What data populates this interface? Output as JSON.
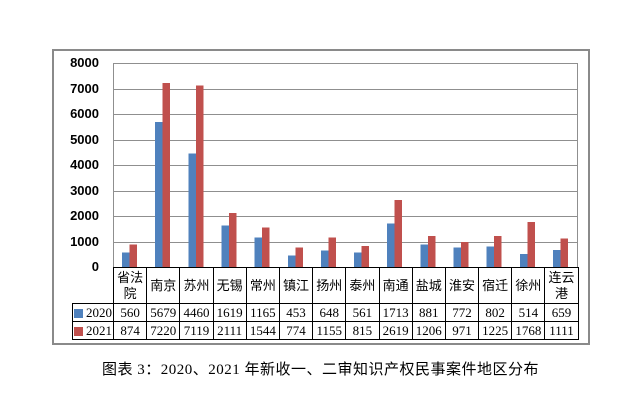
{
  "caption": "图表 3：2020、2021 年新收一、二审知识产权民事案件地区分布",
  "colors": {
    "grid": "#8f8f8f",
    "plot_border": "#8f8f8f",
    "frame_border": "#8a8a8a",
    "table_border": "#000000",
    "series_2020": "#4F81BD",
    "series_2021": "#C0504D"
  },
  "chart_data": {
    "type": "bar",
    "title": "",
    "xlabel": "",
    "ylabel": "",
    "categories": [
      "省法院",
      "南京",
      "苏州",
      "无锡",
      "常州",
      "镇江",
      "扬州",
      "泰州",
      "南通",
      "盐城",
      "淮安",
      "宿迁",
      "徐州",
      "连云港"
    ],
    "series": [
      {
        "name": "2020",
        "color": "#4F81BD",
        "values": [
          560,
          5679,
          4460,
          1619,
          1165,
          453,
          648,
          561,
          1713,
          881,
          772,
          802,
          514,
          659
        ]
      },
      {
        "name": "2021",
        "color": "#C0504D",
        "values": [
          874,
          7220,
          7119,
          2111,
          1544,
          774,
          1155,
          815,
          2619,
          1206,
          971,
          1225,
          1768,
          1111
        ]
      }
    ],
    "ylim": [
      0,
      8000
    ],
    "ytick_step": 1000,
    "yticks": [
      "0",
      "1000",
      "2000",
      "3000",
      "4000",
      "5000",
      "6000",
      "7000",
      "8000"
    ],
    "grid": "horizontal gridlines on",
    "legend_position": "left column of attached data table",
    "data_table": true
  }
}
